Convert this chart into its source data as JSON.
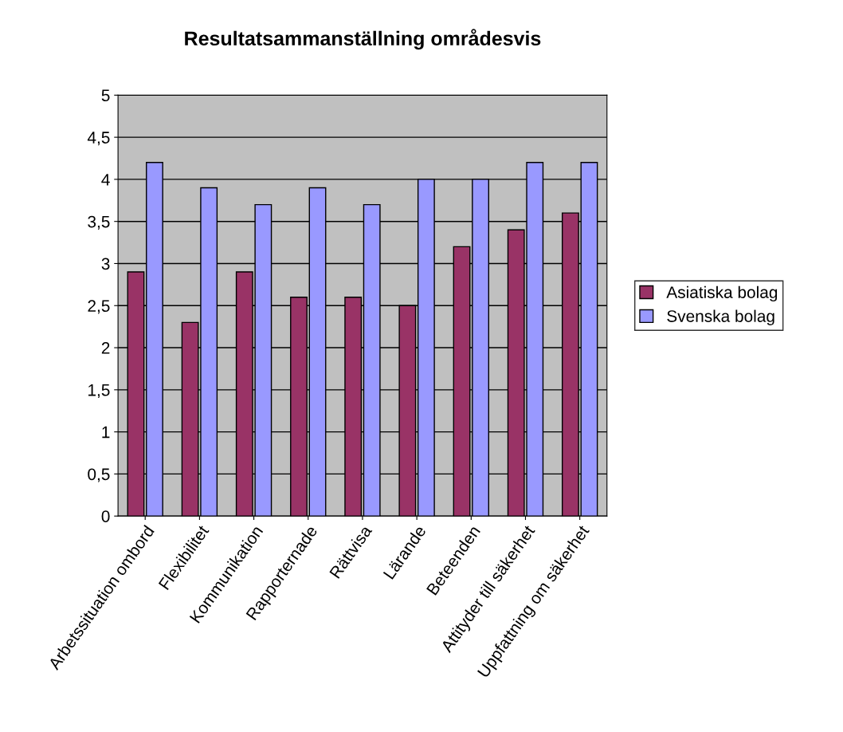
{
  "chart_data": {
    "type": "bar",
    "title": "Resultatsammanställning områdesvis",
    "categories": [
      "Arbetssituation ombord",
      "Flexibilitet",
      "Kommunikation",
      "Rapporternade",
      "Rättvisa",
      "Lärande",
      "Beteenden",
      "Attityder till säkerhet",
      "Uppfattning om säkerhet"
    ],
    "series": [
      {
        "name": "Asiatiska bolag",
        "color": "#993366",
        "values": [
          2.9,
          2.3,
          2.9,
          2.6,
          2.6,
          2.5,
          3.2,
          3.4,
          3.6
        ]
      },
      {
        "name": "Svenska bolag",
        "color": "#9999ff",
        "values": [
          4.2,
          3.9,
          3.7,
          3.9,
          3.7,
          4.0,
          4.0,
          4.2,
          4.2
        ]
      }
    ],
    "ylim": [
      0,
      5
    ],
    "yticks": [
      0,
      {
        "value": 0.5,
        "label": "0,5"
      },
      1,
      {
        "value": 1.5,
        "label": "1,5"
      },
      2,
      {
        "value": 2.5,
        "label": "2,5"
      },
      3,
      {
        "value": 3.5,
        "label": "3,5"
      },
      4,
      {
        "value": 4.5,
        "label": "4,5"
      },
      5
    ],
    "grid": "y",
    "legend": "right"
  }
}
